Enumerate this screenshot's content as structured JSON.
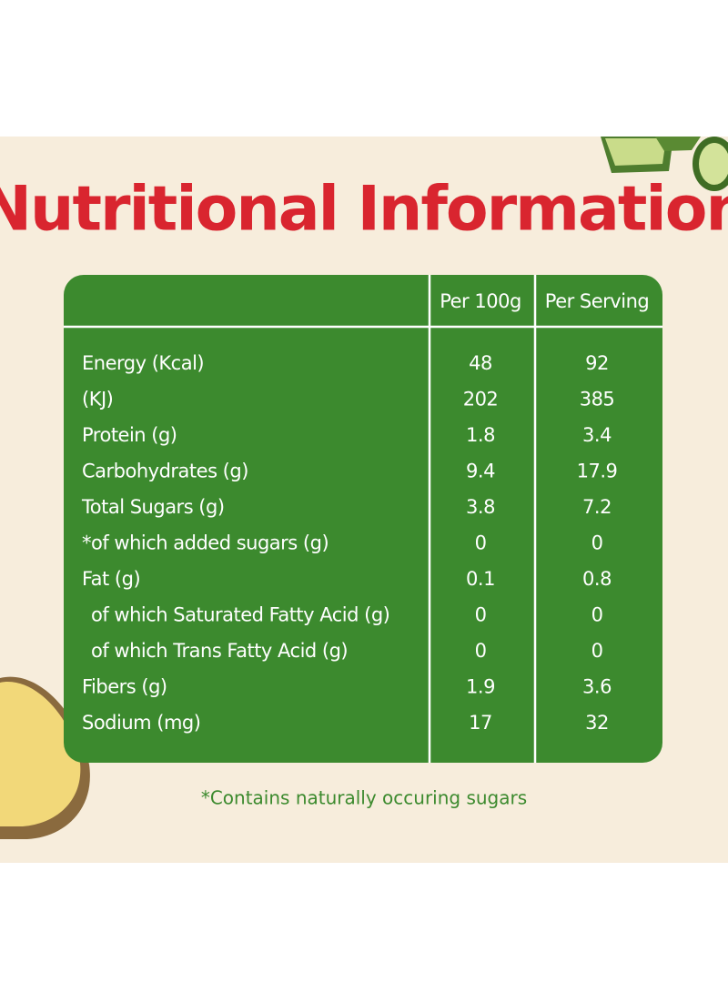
{
  "title": "Nutritional Information",
  "table": {
    "headers": [
      "Per 100g",
      "Per Serving"
    ],
    "rows": [
      [
        "Energy (Kcal)",
        "48",
        "92"
      ],
      [
        "(KJ)",
        "202",
        "385"
      ],
      [
        "Protein (g)",
        "1.8",
        "3.4"
      ],
      [
        "Carbohydrates (g)",
        "9.4",
        "17.9"
      ],
      [
        "Total Sugars (g)",
        "3.8",
        "7.2"
      ],
      [
        "*of which added sugars (g)",
        "0",
        "0"
      ],
      [
        "Fat (g)",
        "0.1",
        "0.8"
      ],
      [
        "of which Saturated Fatty Acid (g)",
        "0",
        "0"
      ],
      [
        "of which Trans Fatty Acid (g)",
        "0",
        "0"
      ],
      [
        "Fibers (g)",
        "1.9",
        "3.6"
      ],
      [
        "Sodium (mg)",
        "17",
        "32"
      ]
    ]
  },
  "footnote": "*Contains naturally occuring sugars"
}
